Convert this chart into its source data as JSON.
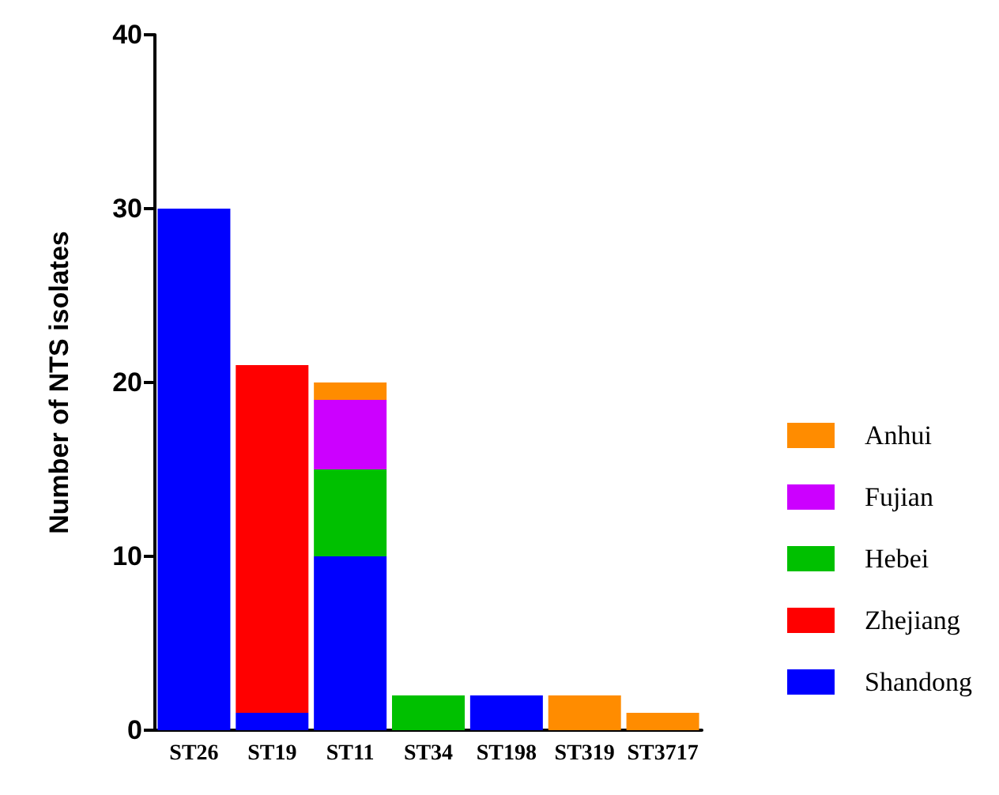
{
  "chart_data": {
    "type": "bar",
    "stacked": true,
    "ylabel": "Number of NTS isolates",
    "categories": [
      "ST26",
      "ST19",
      "ST11",
      "ST34",
      "ST198",
      "ST319",
      "ST3717"
    ],
    "series": [
      {
        "name": "Shandong",
        "color": "#0000ff",
        "values": [
          30,
          1,
          10,
          0,
          2,
          0,
          0
        ]
      },
      {
        "name": "Zhejiang",
        "color": "#ff0000",
        "values": [
          0,
          20,
          0,
          0,
          0,
          0,
          0
        ]
      },
      {
        "name": "Hebei",
        "color": "#00c000",
        "values": [
          0,
          0,
          5,
          2,
          0,
          0,
          0
        ]
      },
      {
        "name": "Fujian",
        "color": "#cc00ff",
        "values": [
          0,
          0,
          4,
          0,
          0,
          0,
          0
        ]
      },
      {
        "name": "Anhui",
        "color": "#ff8c00",
        "values": [
          0,
          0,
          1,
          0,
          0,
          2,
          1
        ]
      }
    ],
    "ylim": [
      0,
      40
    ],
    "yticks": [
      0,
      10,
      20,
      30,
      40
    ],
    "grid": false,
    "legend": "right"
  }
}
